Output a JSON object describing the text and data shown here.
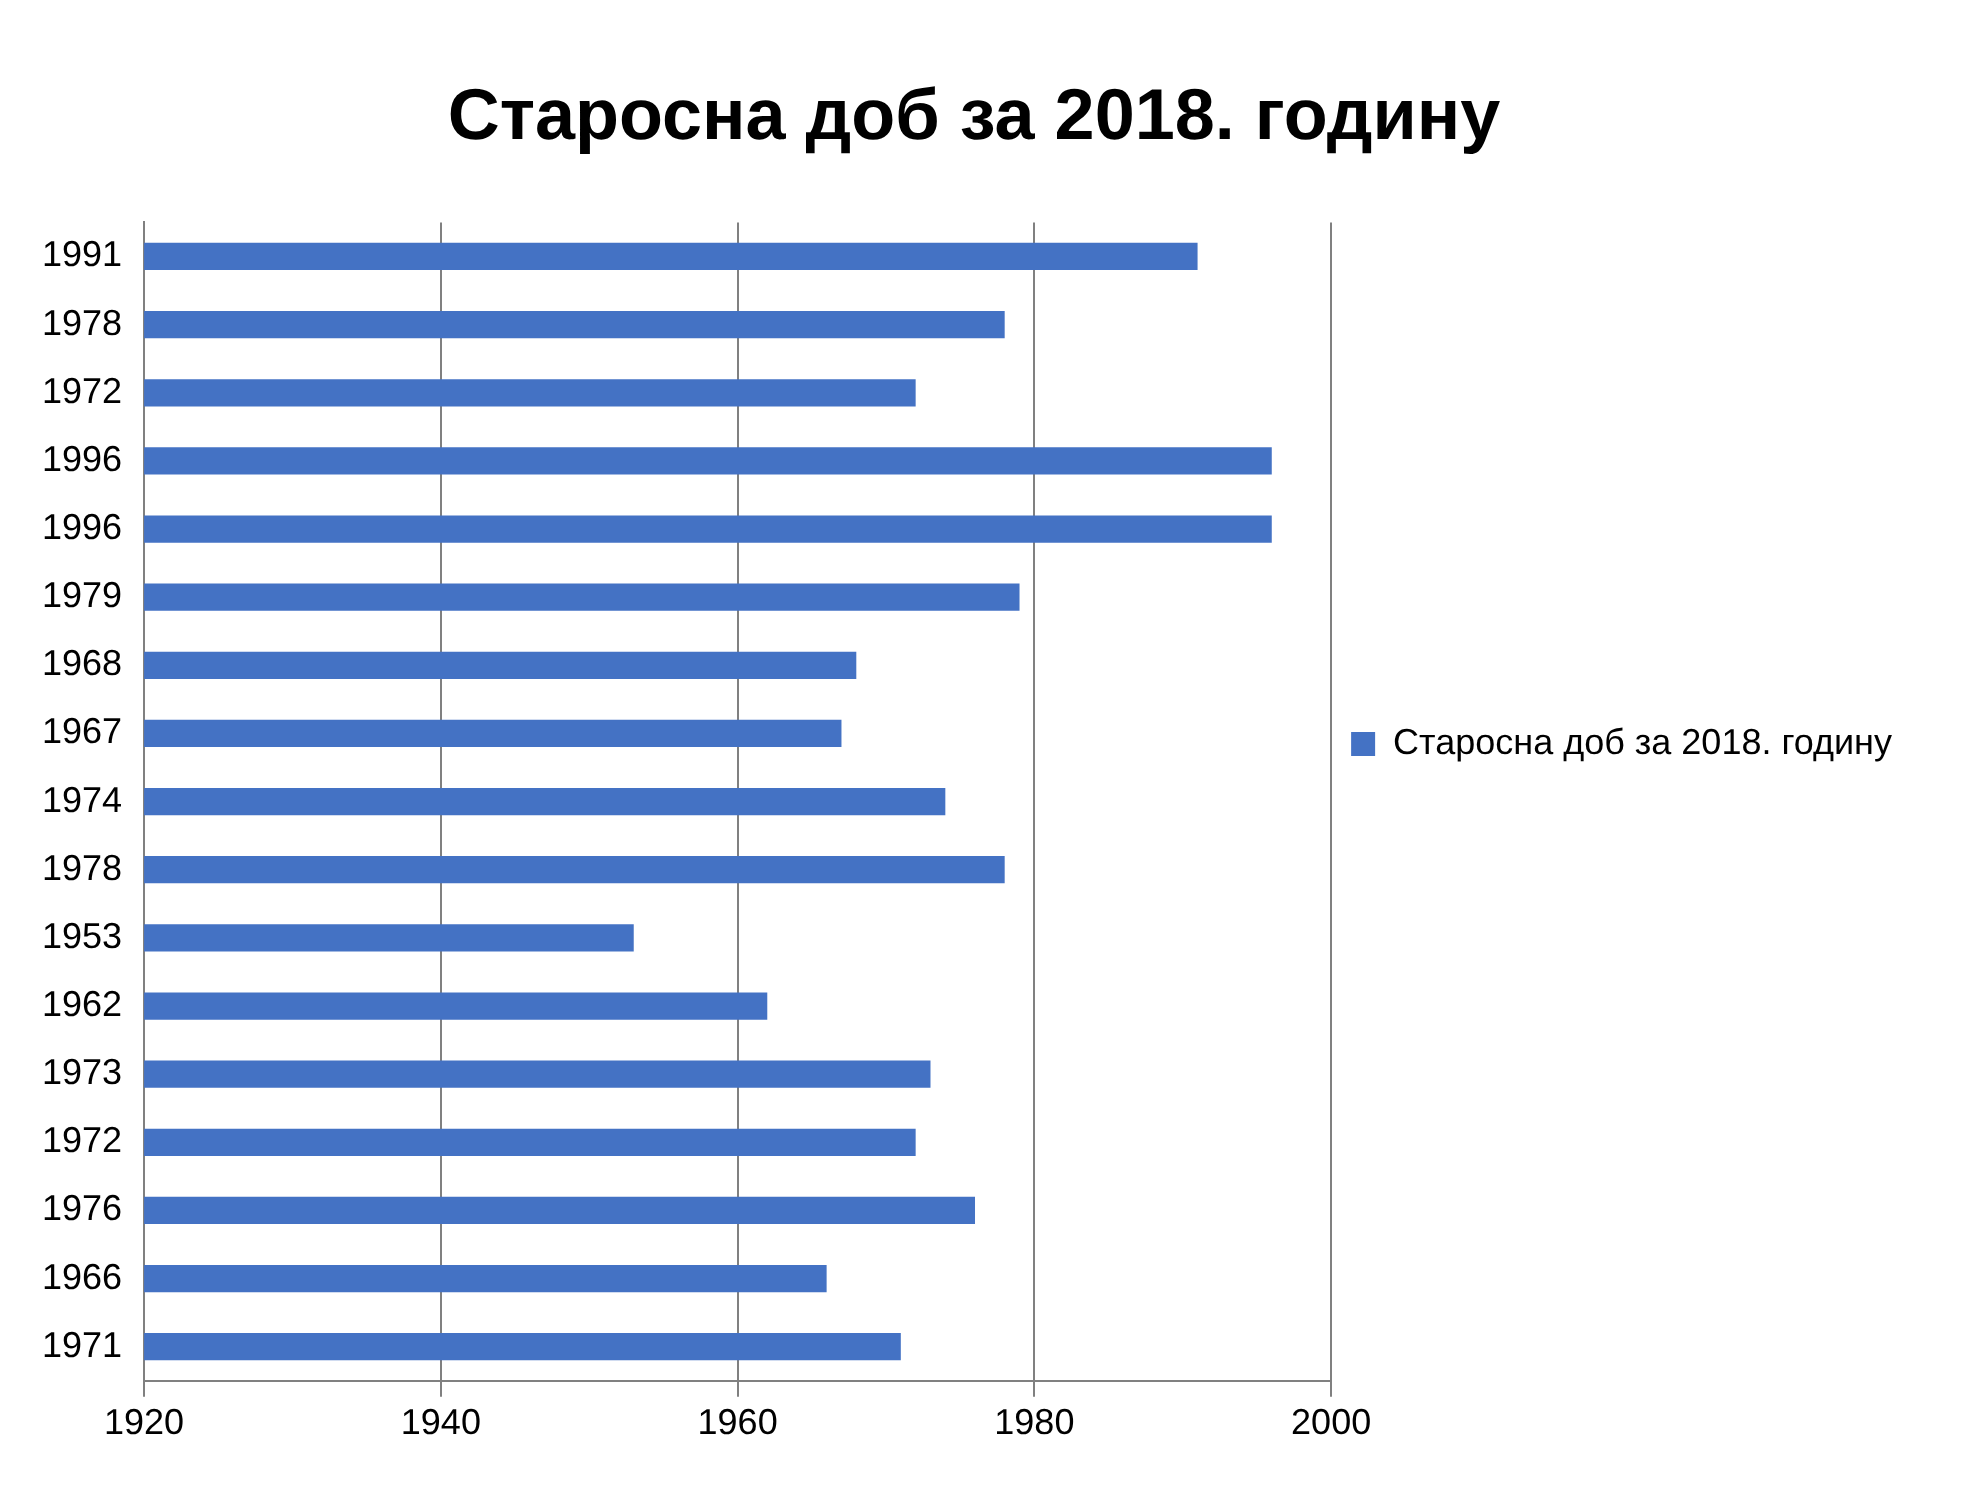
{
  "chart_data": {
    "type": "bar",
    "orientation": "horizontal",
    "title": "Старосна доб за 2018. годину",
    "categories": [
      "1991",
      "1978",
      "1972",
      "1996",
      "1996",
      "1979",
      "1968",
      "1967",
      "1974",
      "1978",
      "1953",
      "1962",
      "1973",
      "1972",
      "1976",
      "1966",
      "1971"
    ],
    "series": [
      {
        "name": "Старосна доб за 2018. годину",
        "color": "#4472c4",
        "values": [
          1991,
          1978,
          1972,
          1996,
          1996,
          1979,
          1968,
          1967,
          1974,
          1978,
          1953,
          1962,
          1973,
          1972,
          1976,
          1966,
          1971
        ]
      }
    ],
    "xlim": [
      1920,
      2000
    ],
    "xticks": [
      1920,
      1940,
      1960,
      1980,
      2000
    ],
    "grid": "x",
    "legend": "right"
  }
}
